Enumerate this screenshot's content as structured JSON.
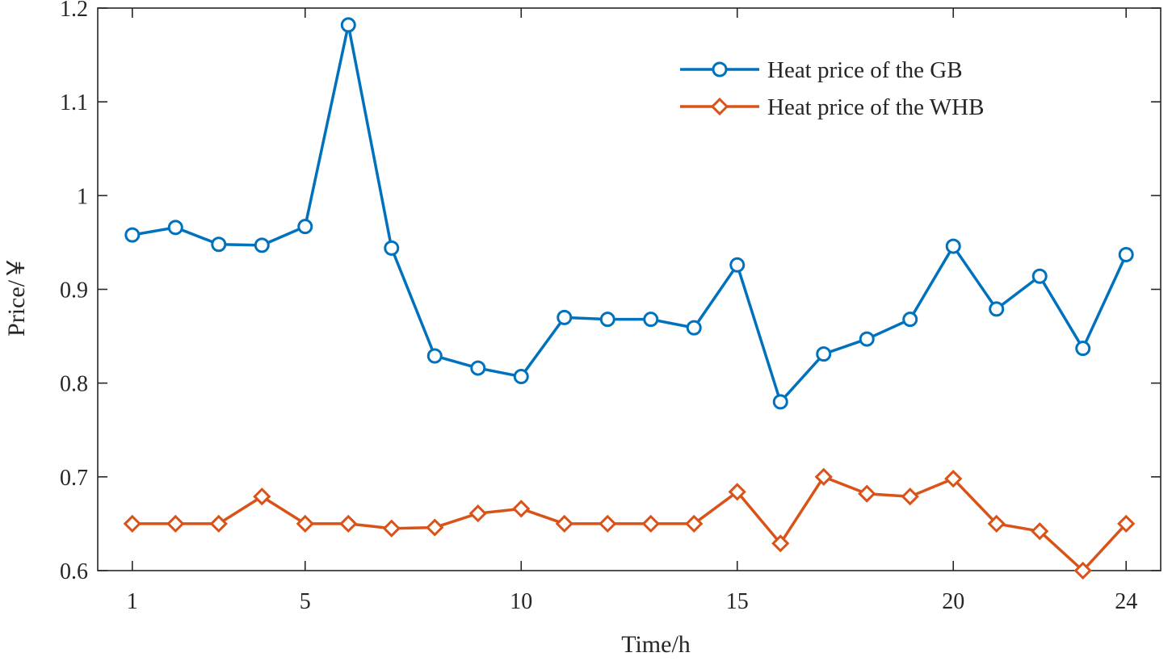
{
  "chart_data": {
    "type": "line",
    "title": "",
    "xlabel": "Time/h",
    "ylabel": "Price/￥",
    "xlim": [
      0.2,
      24.8
    ],
    "ylim": [
      0.6,
      1.2
    ],
    "xticks": [
      1,
      5,
      10,
      15,
      20,
      24
    ],
    "yticks": [
      0.6,
      0.7,
      0.8,
      0.9,
      1.0,
      1.1,
      1.2
    ],
    "ytick_labels": [
      "0.6",
      "0.7",
      "0.8",
      "0.9",
      "1",
      "1.1",
      "1.2"
    ],
    "grid": false,
    "legend_position": "top-right",
    "x": [
      1,
      2,
      3,
      4,
      5,
      6,
      7,
      8,
      9,
      10,
      11,
      12,
      13,
      14,
      15,
      16,
      17,
      18,
      19,
      20,
      21,
      22,
      23,
      24
    ],
    "series": [
      {
        "name": "Heat price of the GB",
        "color": "#0072BD",
        "marker": "circle",
        "values": [
          0.958,
          0.966,
          0.948,
          0.947,
          0.967,
          1.182,
          0.944,
          0.829,
          0.816,
          0.807,
          0.87,
          0.868,
          0.868,
          0.859,
          0.926,
          0.78,
          0.831,
          0.847,
          0.868,
          0.946,
          0.879,
          0.914,
          0.837,
          0.937
        ]
      },
      {
        "name": "Heat price of the WHB",
        "color": "#D95319",
        "marker": "diamond",
        "values": [
          0.65,
          0.65,
          0.65,
          0.679,
          0.65,
          0.65,
          0.645,
          0.646,
          0.661,
          0.666,
          0.65,
          0.65,
          0.65,
          0.65,
          0.684,
          0.629,
          0.7,
          0.682,
          0.679,
          0.698,
          0.65,
          0.642,
          0.6,
          0.65
        ]
      }
    ]
  }
}
